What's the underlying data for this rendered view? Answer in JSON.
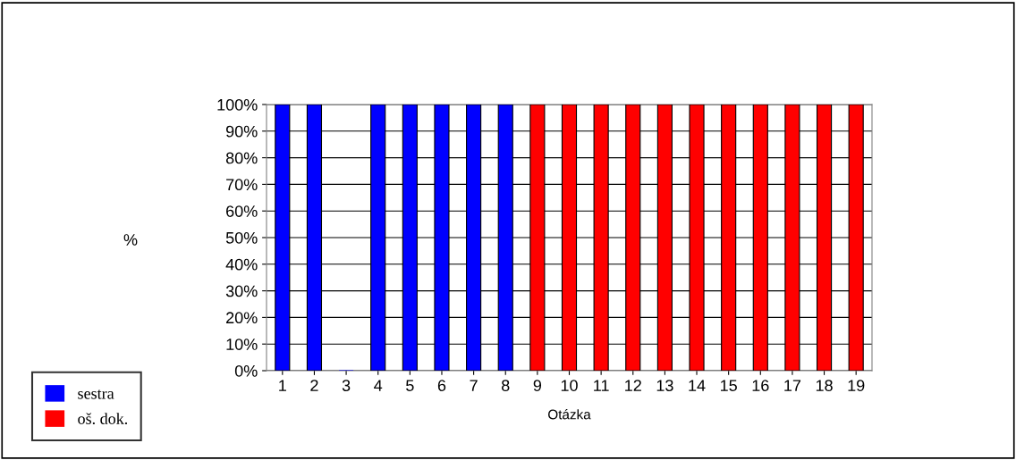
{
  "chart_data": {
    "type": "bar",
    "xlabel": "Otázka",
    "annotations": [
      "%"
    ],
    "categories": [
      "1",
      "2",
      "3",
      "4",
      "5",
      "6",
      "7",
      "8",
      "9",
      "10",
      "11",
      "12",
      "13",
      "14",
      "15",
      "16",
      "17",
      "18",
      "19"
    ],
    "series": [
      {
        "name": "sestra",
        "color": "#0000ff",
        "values": [
          100,
          100,
          0,
          100,
          100,
          100,
          100,
          100,
          null,
          null,
          null,
          null,
          null,
          null,
          null,
          null,
          null,
          null,
          null
        ]
      },
      {
        "name": "oš. dok.",
        "color": "#ff0000",
        "values": [
          null,
          null,
          null,
          null,
          null,
          null,
          null,
          null,
          100,
          100,
          100,
          100,
          100,
          100,
          100,
          100,
          100,
          100,
          100
        ]
      }
    ],
    "ylim": [
      0,
      100
    ],
    "yticks": [
      {
        "value": 0,
        "label": "0%"
      },
      {
        "value": 10,
        "label": "10%"
      },
      {
        "value": 20,
        "label": "20%"
      },
      {
        "value": 30,
        "label": "30%"
      },
      {
        "value": 40,
        "label": "40%"
      },
      {
        "value": 50,
        "label": "50%"
      },
      {
        "value": 60,
        "label": "60%"
      },
      {
        "value": 70,
        "label": "70%"
      },
      {
        "value": 80,
        "label": "80%"
      },
      {
        "value": 90,
        "label": "90%"
      },
      {
        "value": 100,
        "label": "100%"
      }
    ],
    "grid": "y",
    "legend": "bottom left"
  }
}
